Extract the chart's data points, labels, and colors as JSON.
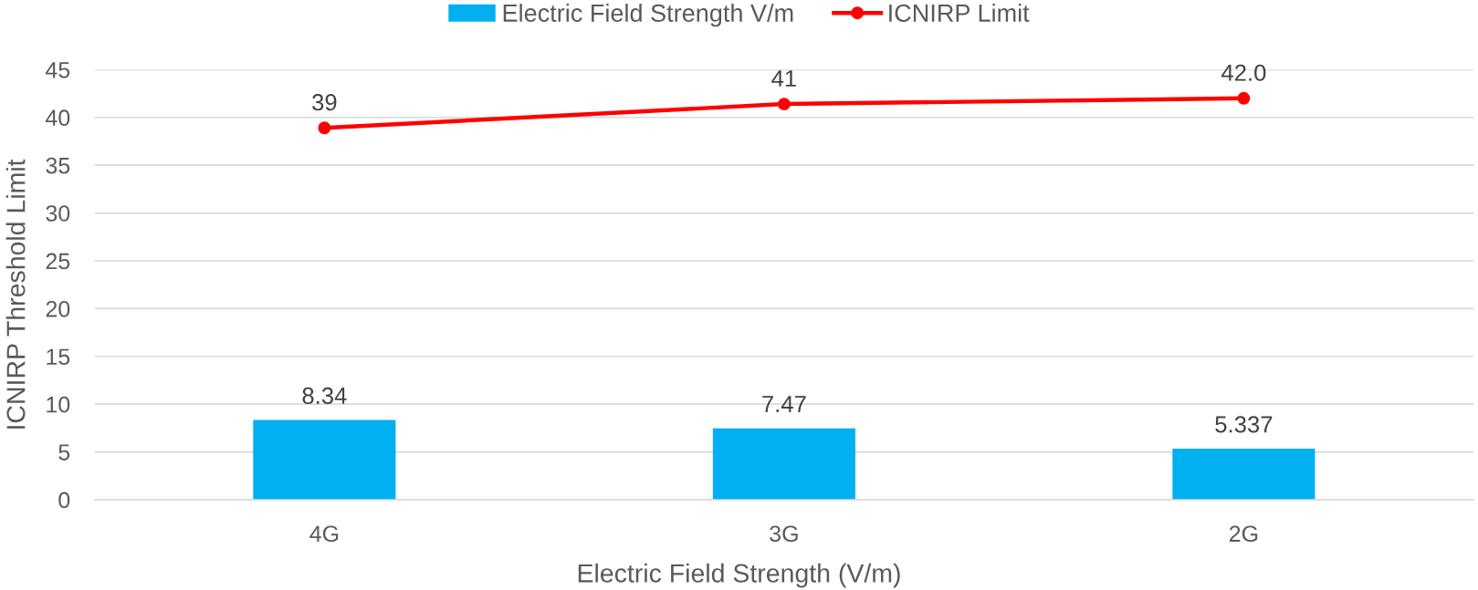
{
  "chart_data": {
    "type": "bar",
    "categories": [
      "4G",
      "3G",
      "2G"
    ],
    "xlabel": "Electric Field Strength (V/m)",
    "ylabel": "ICNIRP Threshold Limit",
    "series": [
      {
        "name": "Electric Field Strength V/m",
        "color": "#00b0f0",
        "values": [
          8.34,
          7.47,
          5.337
        ],
        "value_labels": [
          "8.34",
          "7.47",
          "5.337"
        ]
      },
      {
        "name": "ICNIRP Limit",
        "type": "line",
        "color": "#ff0000",
        "values": [
          38.9,
          41.4,
          42.0
        ],
        "value_labels": [
          "39",
          "41",
          "42.0"
        ],
        "marker": "circle",
        "line_style": "solid"
      }
    ],
    "ylim": [
      0,
      45
    ],
    "yticks": [
      0,
      5,
      10,
      15,
      20,
      25,
      30,
      35,
      40,
      45
    ],
    "grid": "y",
    "legend": "top"
  }
}
